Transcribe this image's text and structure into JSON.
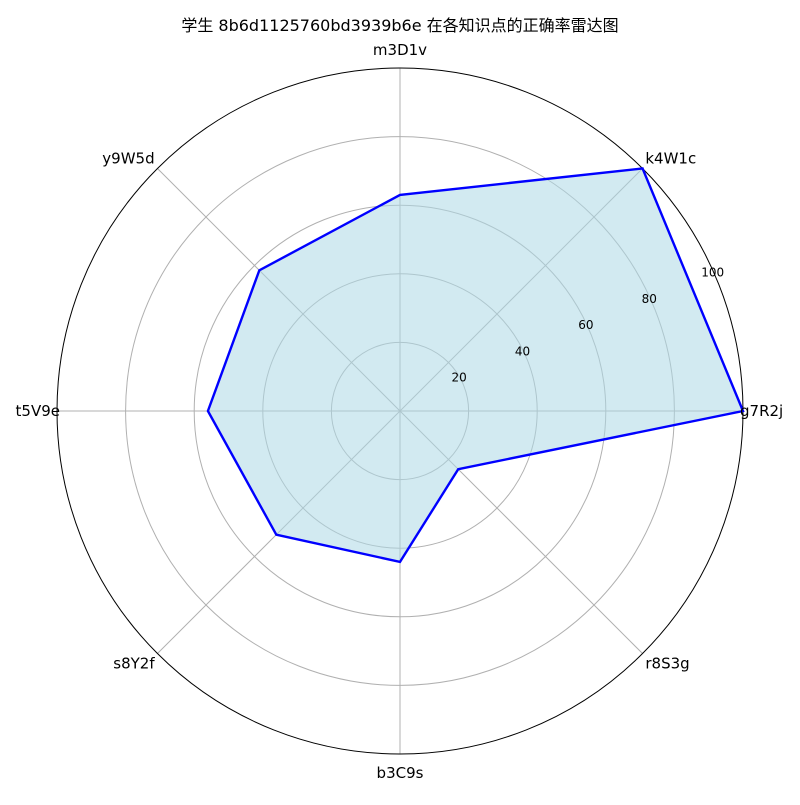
{
  "chart_data": {
    "type": "radar",
    "title": "学生 8b6d1125760bd3939b6e 在各知识点的正确率雷达图",
    "categories": [
      "g7R2j",
      "k4W1c",
      "m3D1v",
      "y9W5d",
      "t5V9e",
      "s8Y2f",
      "b3C9s",
      "r8S3g"
    ],
    "series": [
      {
        "values": [
          100,
          100,
          63,
          58,
          56,
          51,
          44,
          24
        ]
      }
    ],
    "rlim": [
      0,
      100
    ],
    "rticks": [
      20,
      40,
      60,
      80,
      100
    ],
    "grid": true,
    "colors": {
      "line": "#0000ff",
      "fill": "#add8e6",
      "grid": "#b0b0b0",
      "outer": "#000000"
    }
  }
}
